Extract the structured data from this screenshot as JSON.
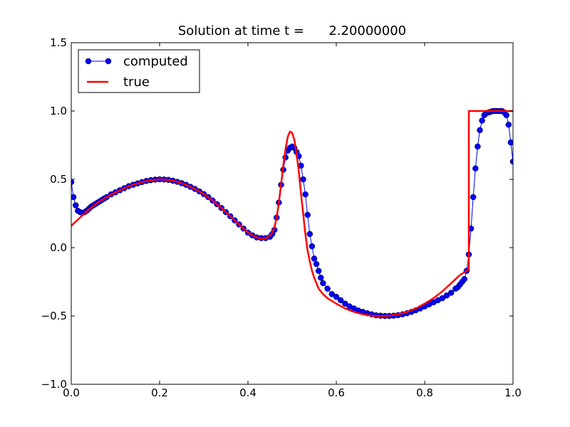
{
  "chart_data": {
    "type": "line",
    "title": "Solution at time t =      2.20000000",
    "xlabel": "",
    "ylabel": "",
    "xlim": [
      0.0,
      1.0
    ],
    "ylim": [
      -1.0,
      1.5
    ],
    "xticks": [
      "0.0",
      "0.2",
      "0.4",
      "0.6",
      "0.8",
      "1.0"
    ],
    "yticks": [
      "−1.0",
      "−0.5",
      "0.0",
      "0.5",
      "1.0",
      "1.5"
    ],
    "grid": false,
    "legend_position": "top-left",
    "series": [
      {
        "name": "computed",
        "style": "line-with-circle-markers",
        "color": "#0000ff",
        "x": [
          0.0,
          0.005,
          0.01,
          0.015,
          0.02,
          0.025,
          0.03,
          0.035,
          0.04,
          0.045,
          0.05,
          0.055,
          0.06,
          0.065,
          0.07,
          0.075,
          0.08,
          0.09,
          0.1,
          0.11,
          0.12,
          0.13,
          0.14,
          0.15,
          0.16,
          0.17,
          0.18,
          0.19,
          0.2,
          0.21,
          0.22,
          0.23,
          0.24,
          0.25,
          0.26,
          0.27,
          0.28,
          0.29,
          0.3,
          0.31,
          0.32,
          0.33,
          0.34,
          0.35,
          0.36,
          0.37,
          0.38,
          0.39,
          0.4,
          0.41,
          0.42,
          0.43,
          0.44,
          0.45,
          0.455,
          0.46,
          0.465,
          0.47,
          0.475,
          0.48,
          0.485,
          0.49,
          0.495,
          0.5,
          0.505,
          0.51,
          0.515,
          0.52,
          0.525,
          0.53,
          0.535,
          0.54,
          0.545,
          0.55,
          0.555,
          0.56,
          0.565,
          0.57,
          0.58,
          0.59,
          0.6,
          0.61,
          0.62,
          0.63,
          0.64,
          0.65,
          0.66,
          0.67,
          0.68,
          0.69,
          0.7,
          0.71,
          0.72,
          0.73,
          0.74,
          0.75,
          0.76,
          0.77,
          0.78,
          0.79,
          0.8,
          0.81,
          0.82,
          0.83,
          0.84,
          0.85,
          0.86,
          0.87,
          0.875,
          0.88,
          0.885,
          0.89,
          0.895,
          0.9,
          0.905,
          0.91,
          0.915,
          0.92,
          0.925,
          0.93,
          0.935,
          0.94,
          0.945,
          0.95,
          0.955,
          0.96,
          0.965,
          0.97,
          0.975,
          0.98,
          0.985,
          0.99,
          0.995,
          1.0
        ],
        "y": [
          0.48,
          0.37,
          0.31,
          0.27,
          0.26,
          0.255,
          0.26,
          0.27,
          0.285,
          0.3,
          0.31,
          0.32,
          0.33,
          0.34,
          0.35,
          0.36,
          0.37,
          0.39,
          0.405,
          0.42,
          0.435,
          0.45,
          0.46,
          0.47,
          0.48,
          0.488,
          0.494,
          0.498,
          0.5,
          0.499,
          0.496,
          0.49,
          0.482,
          0.472,
          0.46,
          0.445,
          0.43,
          0.412,
          0.392,
          0.37,
          0.345,
          0.318,
          0.29,
          0.26,
          0.23,
          0.2,
          0.17,
          0.14,
          0.11,
          0.09,
          0.075,
          0.07,
          0.07,
          0.08,
          0.1,
          0.13,
          0.22,
          0.33,
          0.46,
          0.57,
          0.66,
          0.71,
          0.73,
          0.74,
          0.73,
          0.7,
          0.67,
          0.6,
          0.5,
          0.39,
          0.24,
          0.1,
          0.01,
          -0.08,
          -0.12,
          -0.17,
          -0.22,
          -0.26,
          -0.3,
          -0.34,
          -0.36,
          -0.385,
          -0.41,
          -0.43,
          -0.445,
          -0.46,
          -0.47,
          -0.48,
          -0.488,
          -0.495,
          -0.498,
          -0.5,
          -0.5,
          -0.498,
          -0.494,
          -0.488,
          -0.48,
          -0.47,
          -0.458,
          -0.445,
          -0.43,
          -0.415,
          -0.4,
          -0.385,
          -0.37,
          -0.35,
          -0.33,
          -0.3,
          -0.29,
          -0.27,
          -0.25,
          -0.23,
          -0.17,
          -0.05,
          0.14,
          0.37,
          0.58,
          0.74,
          0.86,
          0.93,
          0.97,
          0.985,
          0.99,
          0.995,
          1.0,
          1.0,
          1.0,
          1.0,
          1.0,
          0.99,
          0.97,
          0.9,
          0.77,
          0.63
        ]
      },
      {
        "name": "true",
        "style": "line",
        "color": "#ff0000",
        "x": [
          0.0,
          0.02,
          0.04,
          0.06,
          0.08,
          0.1,
          0.12,
          0.14,
          0.16,
          0.18,
          0.2,
          0.22,
          0.24,
          0.26,
          0.28,
          0.3,
          0.32,
          0.34,
          0.36,
          0.38,
          0.4,
          0.42,
          0.43,
          0.44,
          0.45,
          0.455,
          0.46,
          0.465,
          0.47,
          0.475,
          0.48,
          0.485,
          0.49,
          0.495,
          0.5,
          0.505,
          0.51,
          0.515,
          0.52,
          0.525,
          0.53,
          0.535,
          0.54,
          0.545,
          0.55,
          0.56,
          0.57,
          0.58,
          0.6,
          0.62,
          0.64,
          0.66,
          0.68,
          0.7,
          0.72,
          0.74,
          0.76,
          0.78,
          0.8,
          0.82,
          0.84,
          0.86,
          0.88,
          0.9,
          0.9,
          0.92,
          0.94,
          0.96,
          0.98,
          1.0
        ],
        "y": [
          0.16,
          0.22,
          0.28,
          0.33,
          0.37,
          0.405,
          0.435,
          0.46,
          0.48,
          0.494,
          0.5,
          0.496,
          0.482,
          0.46,
          0.43,
          0.392,
          0.345,
          0.29,
          0.23,
          0.17,
          0.11,
          0.075,
          0.065,
          0.068,
          0.09,
          0.11,
          0.15,
          0.22,
          0.33,
          0.46,
          0.6,
          0.72,
          0.81,
          0.85,
          0.84,
          0.79,
          0.69,
          0.56,
          0.4,
          0.25,
          0.1,
          -0.02,
          -0.1,
          -0.17,
          -0.22,
          -0.3,
          -0.34,
          -0.37,
          -0.41,
          -0.445,
          -0.47,
          -0.488,
          -0.498,
          -0.5,
          -0.498,
          -0.488,
          -0.47,
          -0.445,
          -0.41,
          -0.37,
          -0.32,
          -0.26,
          -0.2,
          -0.16,
          1.0,
          1.0,
          1.0,
          1.0,
          1.0,
          1.0
        ]
      }
    ]
  }
}
